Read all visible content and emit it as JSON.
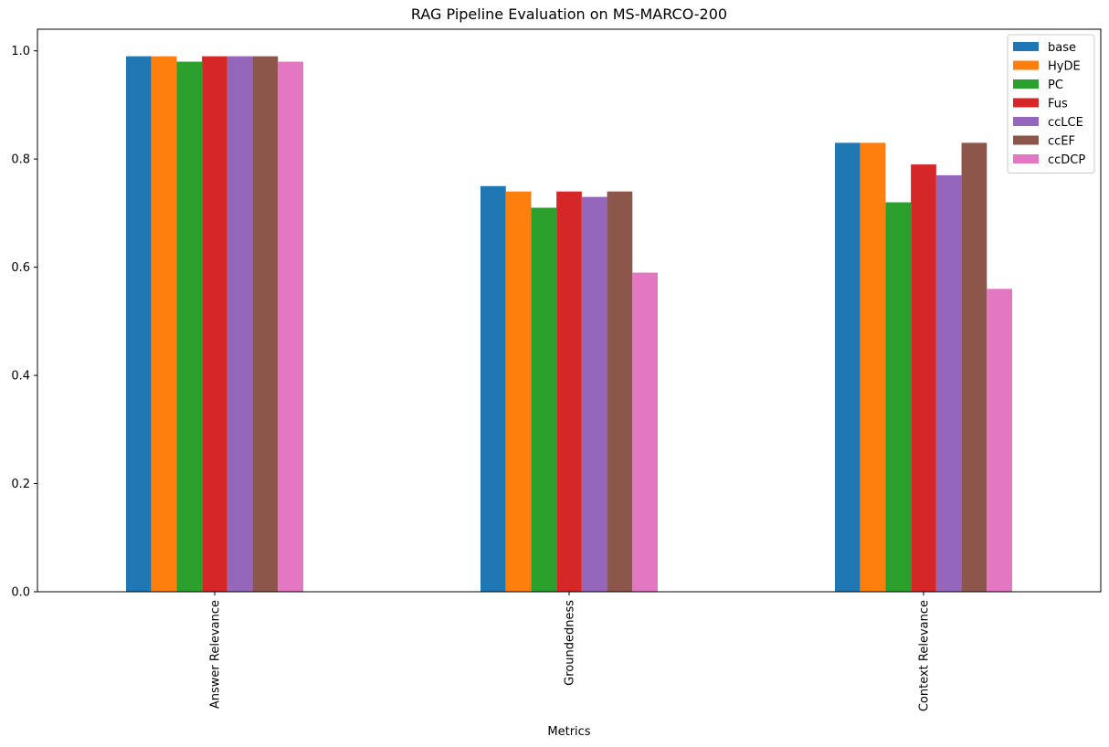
{
  "chart_data": {
    "type": "bar",
    "title": "RAG Pipeline Evaluation on MS-MARCO-200",
    "xlabel": "Metrics",
    "ylabel": "",
    "categories": [
      "Answer Relevance",
      "Groundedness",
      "Context Relevance"
    ],
    "ylim": [
      0,
      1.04
    ],
    "yticks": [
      "0.0",
      "0.2",
      "0.4",
      "0.6",
      "0.8",
      "1.0"
    ],
    "ytick_values": [
      0,
      0.2,
      0.4,
      0.6,
      0.8,
      1.0
    ],
    "grid": false,
    "legend_position": "top-right",
    "series": [
      {
        "name": "base",
        "color": "#1f77b4",
        "values": [
          0.99,
          0.75,
          0.83
        ]
      },
      {
        "name": "HyDE",
        "color": "#ff7f0e",
        "values": [
          0.99,
          0.74,
          0.83
        ]
      },
      {
        "name": "PC",
        "color": "#2ca02c",
        "values": [
          0.98,
          0.71,
          0.72
        ]
      },
      {
        "name": "Fus",
        "color": "#d62728",
        "values": [
          0.99,
          0.74,
          0.79
        ]
      },
      {
        "name": "ccLCE",
        "color": "#9467bd",
        "values": [
          0.99,
          0.73,
          0.77
        ]
      },
      {
        "name": "ccEF",
        "color": "#8c564b",
        "values": [
          0.99,
          0.74,
          0.83
        ]
      },
      {
        "name": "ccDCP",
        "color": "#e377c2",
        "values": [
          0.98,
          0.59,
          0.56
        ]
      }
    ]
  }
}
